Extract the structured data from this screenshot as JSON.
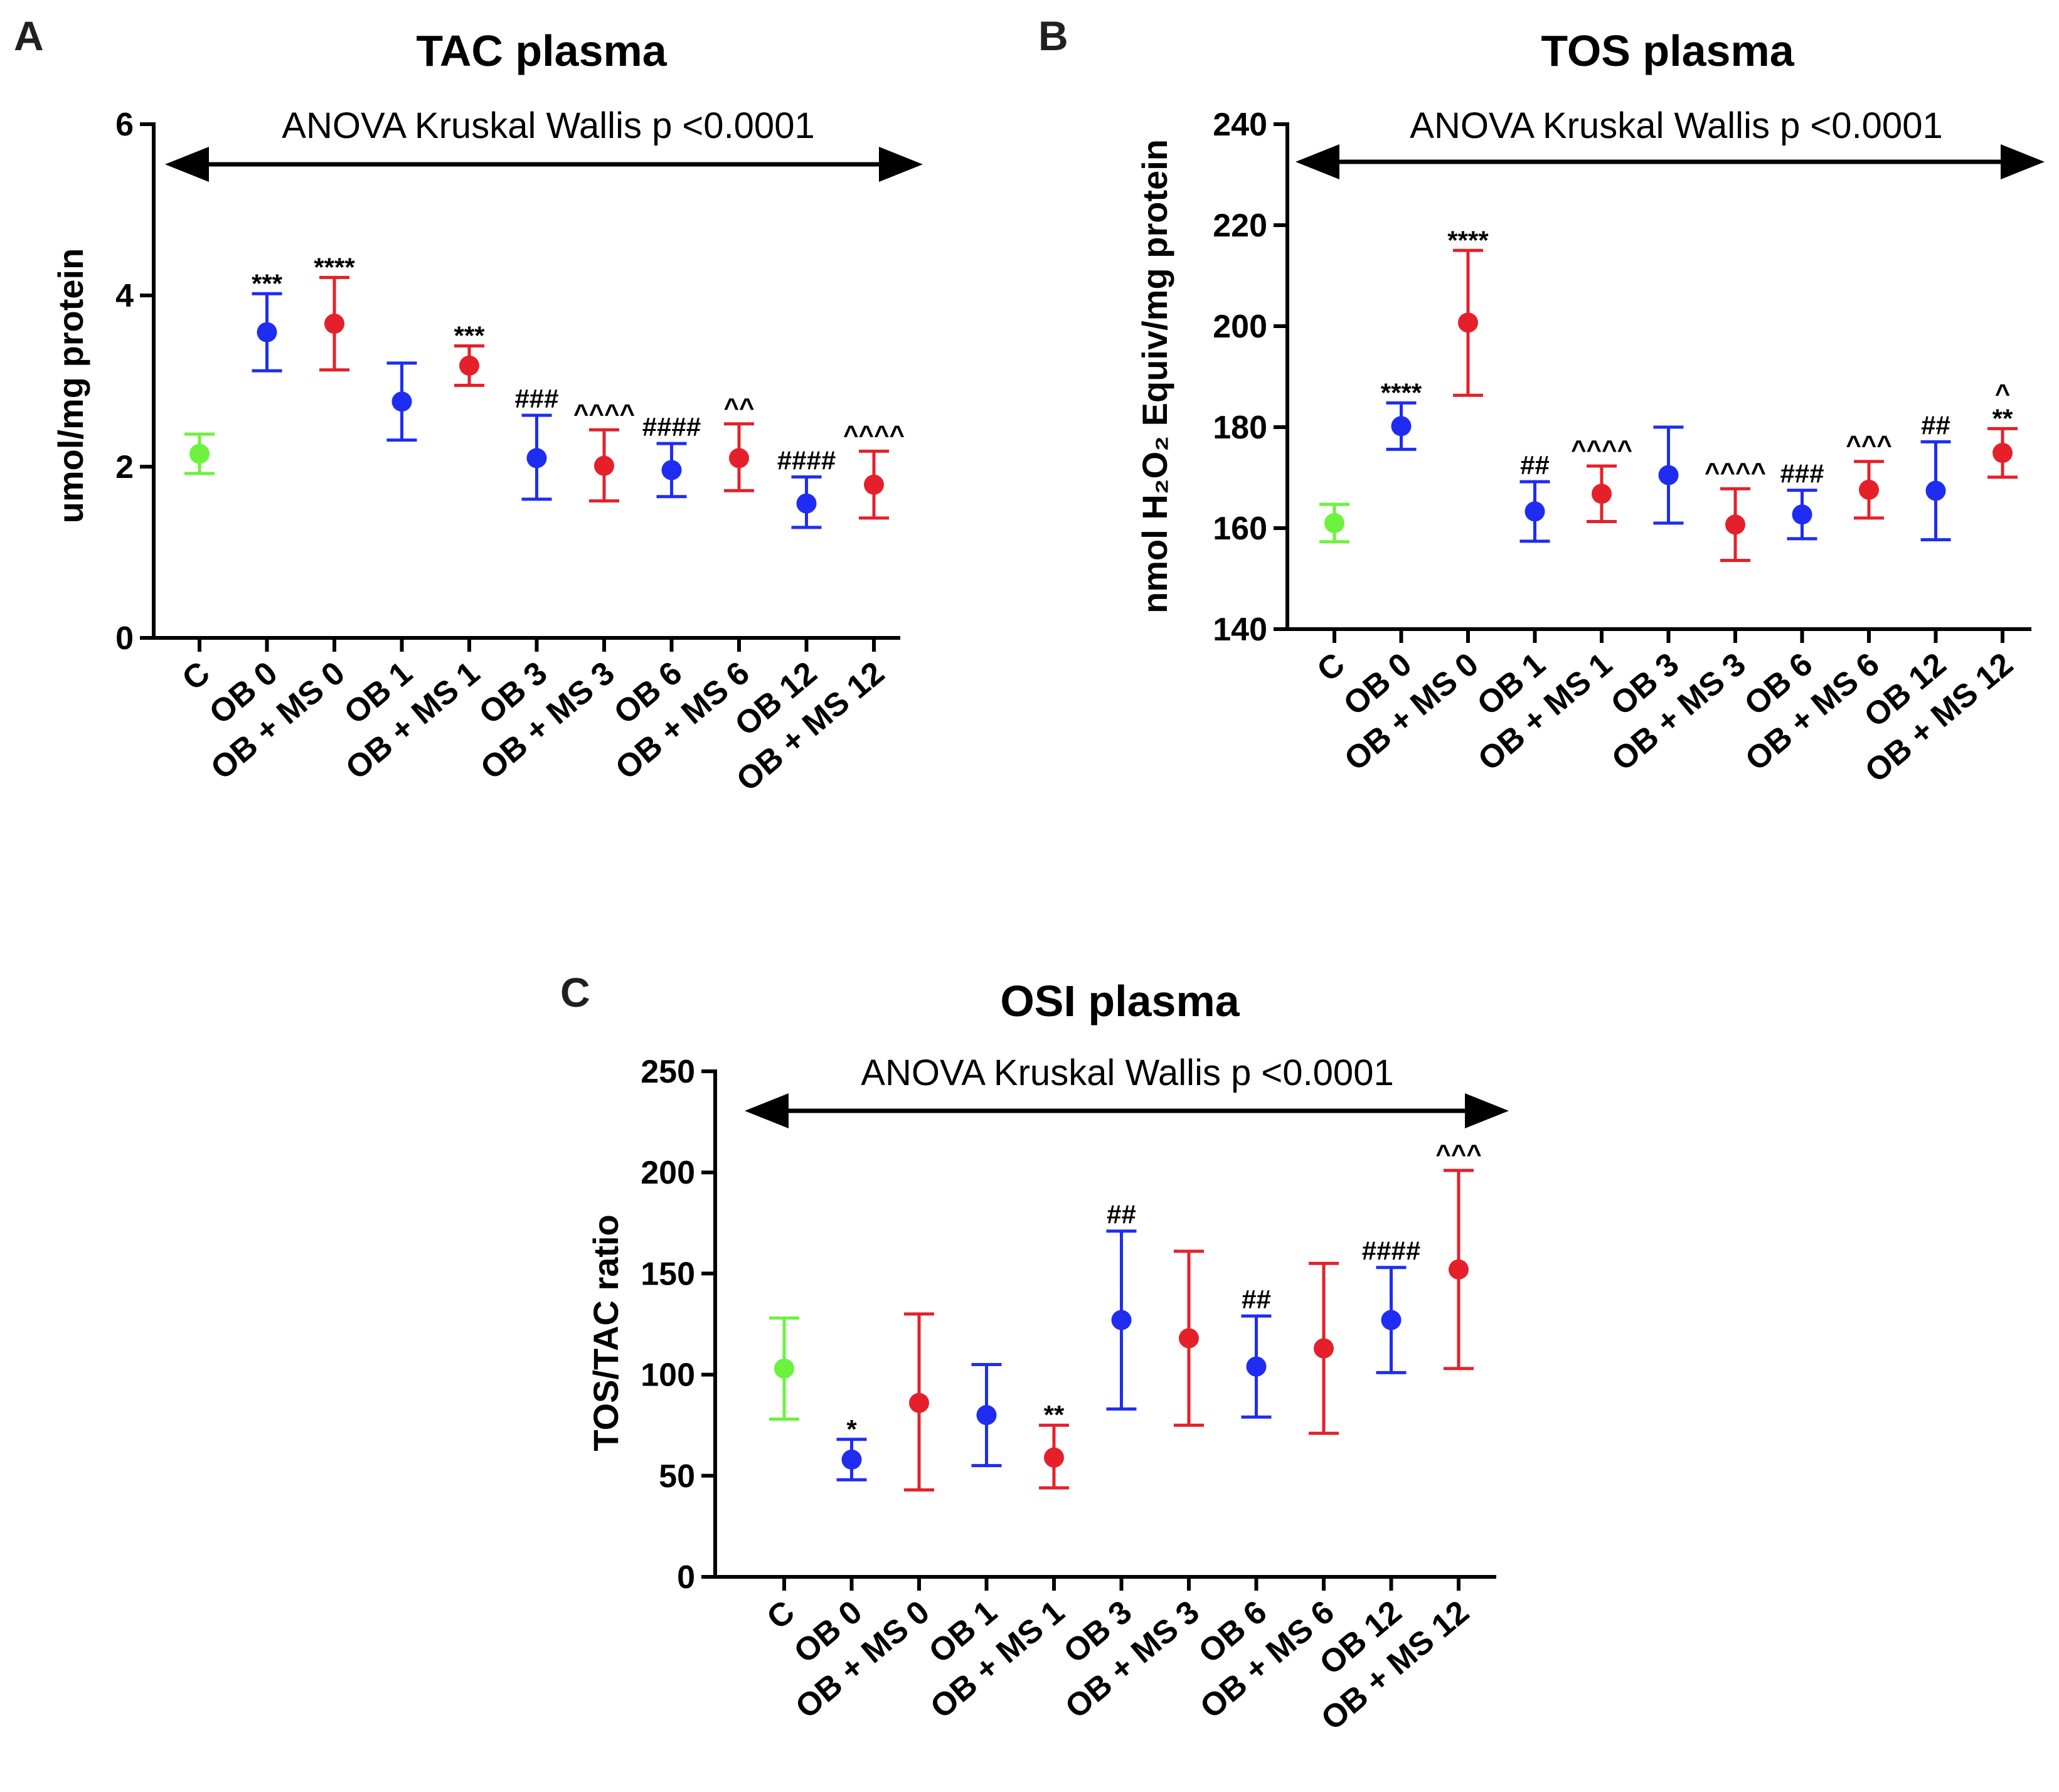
{
  "colors": {
    "control": "#6cf23f",
    "OB": "#1f2df2",
    "OB_MS": "#e5202a",
    "axis": "#000000"
  },
  "chart_data": [
    {
      "id": "A",
      "panel_letter": "A",
      "type": "scatter",
      "title": "TAC plasma",
      "annotation": "ANOVA Kruskal Wallis p <0.0001",
      "ylabel": "umol/mg protein",
      "ylim": [
        0,
        6
      ],
      "yticks": [
        "0",
        "2",
        "4",
        "6"
      ],
      "ytick_values": [
        0,
        2,
        4,
        6
      ],
      "categories": [
        "C",
        "OB 0",
        "OB + MS 0",
        "OB 1",
        "OB + MS 1",
        "OB 3",
        "OB + MS 3",
        "OB 6",
        "OB + MS 6",
        "OB 12",
        "OB + MS 12"
      ],
      "groups": [
        "control",
        "OB",
        "OB_MS",
        "OB",
        "OB_MS",
        "OB",
        "OB_MS",
        "OB",
        "OB_MS",
        "OB",
        "OB_MS"
      ],
      "values": [
        2.15,
        3.57,
        3.67,
        2.76,
        3.18,
        2.1,
        2.01,
        1.96,
        2.1,
        1.57,
        1.79
      ],
      "err_low": [
        1.92,
        3.12,
        3.13,
        2.31,
        2.95,
        1.62,
        1.6,
        1.65,
        1.72,
        1.29,
        1.4
      ],
      "err_high": [
        2.38,
        4.02,
        4.21,
        3.21,
        3.41,
        2.6,
        2.43,
        2.27,
        2.5,
        1.88,
        2.18
      ],
      "significance": [
        "",
        "***",
        "****",
        "",
        "***",
        "###",
        "^^^^",
        "####",
        "^^",
        "####",
        "^^^^"
      ]
    },
    {
      "id": "B",
      "panel_letter": "B",
      "type": "scatter",
      "title": "TOS plasma",
      "annotation": "ANOVA Kruskal Wallis p <0.0001",
      "ylabel": "nmol H₂O₂ Equiv/mg protein",
      "ylim": [
        140,
        240
      ],
      "yticks": [
        "140",
        "160",
        "180",
        "200",
        "220",
        "240"
      ],
      "ytick_values": [
        140,
        160,
        180,
        200,
        220,
        240
      ],
      "categories": [
        "C",
        "OB 0",
        "OB + MS 0",
        "OB 1",
        "OB + MS 1",
        "OB 3",
        "OB + MS 3",
        "OB 6",
        "OB + MS 6",
        "OB 12",
        "OB + MS 12"
      ],
      "groups": [
        "control",
        "OB",
        "OB_MS",
        "OB",
        "OB_MS",
        "OB",
        "OB_MS",
        "OB",
        "OB_MS",
        "OB",
        "OB_MS"
      ],
      "values": [
        161.0,
        180.2,
        200.7,
        163.3,
        166.8,
        170.5,
        160.7,
        162.7,
        167.6,
        167.4,
        174.9
      ],
      "err_low": [
        157.3,
        175.6,
        186.3,
        157.4,
        161.3,
        161.0,
        153.6,
        157.9,
        162.0,
        157.7,
        170.1
      ],
      "err_high": [
        164.7,
        184.8,
        215.0,
        169.2,
        172.3,
        180.0,
        167.8,
        167.5,
        173.2,
        177.1,
        179.7
      ],
      "significance": [
        "",
        "****",
        "****",
        "##",
        "^^^^",
        "",
        "^^^^",
        "###",
        "^^^",
        "##",
        "**"
      ],
      "significance_top": [
        "",
        "",
        "",
        "",
        "",
        "",
        "",
        "",
        "",
        "",
        "^"
      ]
    },
    {
      "id": "C",
      "panel_letter": "C",
      "type": "scatter",
      "title": "OSI plasma",
      "annotation": "ANOVA Kruskal Wallis p <0.0001",
      "ylabel": "TOS/TAC ratio",
      "ylim": [
        0,
        250
      ],
      "yticks": [
        "0",
        "50",
        "100",
        "150",
        "200",
        "250"
      ],
      "ytick_values": [
        0,
        50,
        100,
        150,
        200,
        250
      ],
      "categories": [
        "C",
        "OB 0",
        "OB + MS 0",
        "OB 1",
        "OB + MS 1",
        "OB 3",
        "OB + MS 3",
        "OB 6",
        "OB + MS 6",
        "OB 12",
        "OB + MS 12"
      ],
      "groups": [
        "control",
        "OB",
        "OB_MS",
        "OB",
        "OB_MS",
        "OB",
        "OB_MS",
        "OB",
        "OB_MS",
        "OB",
        "OB_MS"
      ],
      "values": [
        103,
        58,
        86,
        80,
        59,
        127,
        118,
        104,
        113,
        127,
        152
      ],
      "err_low": [
        78,
        48,
        43,
        55,
        44,
        83,
        75,
        79,
        71,
        101,
        103
      ],
      "err_high": [
        128,
        68,
        130,
        105,
        75,
        171,
        161,
        129,
        155,
        153,
        201
      ],
      "significance": [
        "",
        "*",
        "",
        "",
        "**",
        "##",
        "",
        "##",
        "",
        "####",
        "^^^"
      ]
    }
  ]
}
